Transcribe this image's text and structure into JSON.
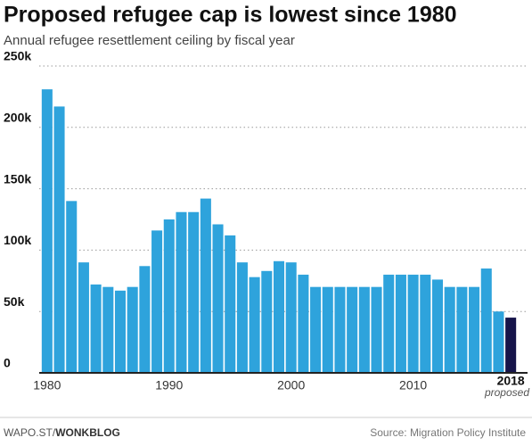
{
  "chart_data": {
    "type": "bar",
    "title": "Proposed refugee cap is lowest since 1980",
    "subtitle": "Annual refugee resettlement ceiling by fiscal year",
    "x": [
      1980,
      1981,
      1982,
      1983,
      1984,
      1985,
      1986,
      1987,
      1988,
      1989,
      1990,
      1991,
      1992,
      1993,
      1994,
      1995,
      1996,
      1997,
      1998,
      1999,
      2000,
      2001,
      2002,
      2003,
      2004,
      2005,
      2006,
      2007,
      2008,
      2009,
      2010,
      2011,
      2012,
      2013,
      2014,
      2015,
      2016,
      2017,
      2018
    ],
    "values": [
      231000,
      217000,
      140000,
      90000,
      72000,
      70000,
      67000,
      70000,
      87000,
      116000,
      125000,
      131000,
      131000,
      142000,
      121000,
      112000,
      90000,
      78000,
      83000,
      91000,
      90000,
      80000,
      70000,
      70000,
      70000,
      70000,
      70000,
      70000,
      80000,
      80000,
      80000,
      80000,
      76000,
      70000,
      70000,
      70000,
      85000,
      50000,
      45000
    ],
    "colors": [
      "#2ea3dc",
      "#2ea3dc",
      "#2ea3dc",
      "#2ea3dc",
      "#2ea3dc",
      "#2ea3dc",
      "#2ea3dc",
      "#2ea3dc",
      "#2ea3dc",
      "#2ea3dc",
      "#2ea3dc",
      "#2ea3dc",
      "#2ea3dc",
      "#2ea3dc",
      "#2ea3dc",
      "#2ea3dc",
      "#2ea3dc",
      "#2ea3dc",
      "#2ea3dc",
      "#2ea3dc",
      "#2ea3dc",
      "#2ea3dc",
      "#2ea3dc",
      "#2ea3dc",
      "#2ea3dc",
      "#2ea3dc",
      "#2ea3dc",
      "#2ea3dc",
      "#2ea3dc",
      "#2ea3dc",
      "#2ea3dc",
      "#2ea3dc",
      "#2ea3dc",
      "#2ea3dc",
      "#2ea3dc",
      "#2ea3dc",
      "#2ea3dc",
      "#2ea3dc",
      "#16144a"
    ],
    "xlim": [
      1979.5,
      2018.5
    ],
    "xticks": [
      1980,
      1990,
      2000,
      2010
    ],
    "highlight_tick": 2018,
    "highlight_note": "proposed",
    "ylim": [
      0,
      250000
    ],
    "yticks": [
      0,
      {
        "value": 50000,
        "label": "50k"
      },
      {
        "value": 100000,
        "label": "100k"
      },
      {
        "value": 150000,
        "label": "150k"
      },
      {
        "value": 200000,
        "label": "200k"
      },
      {
        "value": 250000,
        "label": "250k"
      }
    ],
    "grid": true
  },
  "footer": {
    "site": "WAPO.ST/",
    "section": "WONKBLOG",
    "source": "Source: Migration Policy Institute"
  }
}
